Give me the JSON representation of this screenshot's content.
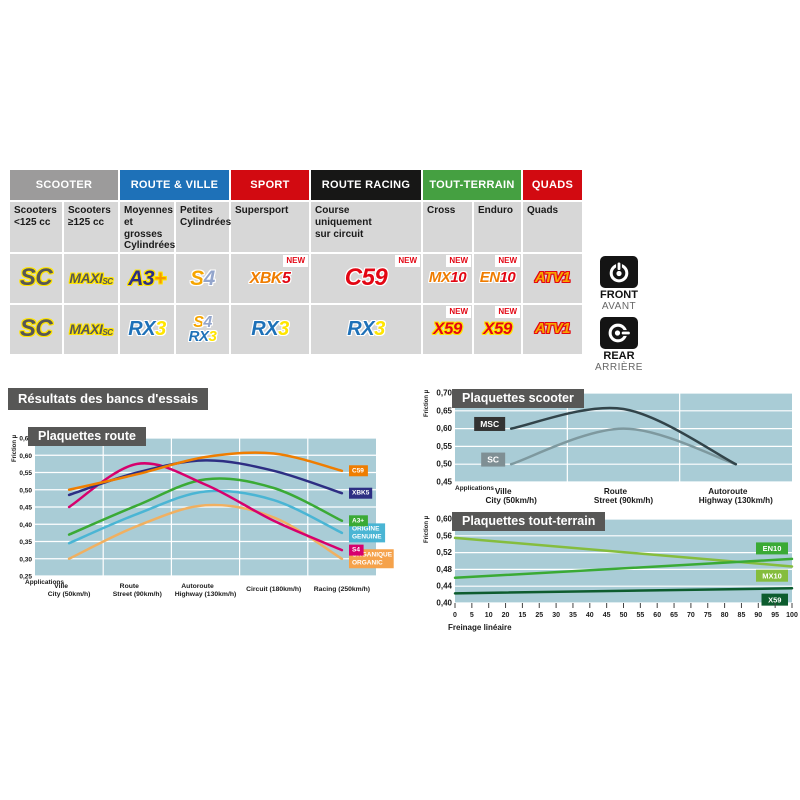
{
  "section_title": "Résultats des bancs d'essais",
  "table": {
    "categories": [
      {
        "label": "SCOOTER",
        "color": "#9c9b9b",
        "span": 2
      },
      {
        "label": "ROUTE & VILLE",
        "color": "#1e71b8",
        "span": 2
      },
      {
        "label": "SPORT",
        "color": "#d20a11",
        "span": 1
      },
      {
        "label": "ROUTE RACING",
        "color": "#171716",
        "span": 1
      },
      {
        "label": "TOUT-TERRAIN",
        "color": "#45a041",
        "span": 2
      },
      {
        "label": "QUADS",
        "color": "#d20a11",
        "span": 1
      }
    ],
    "subheaders": [
      "Scooters\n<125 cc",
      "Scooters\n≥125 cc",
      "Moyennes\net grosses\nCylindrées",
      "Petites\nCylindrées",
      "Supersport",
      "Course\nuniquement\nsur circuit",
      "Cross",
      "Enduro",
      "Quads"
    ],
    "new_label": "NEW",
    "rows": [
      {
        "side": "front",
        "cells": [
          [
            "SC"
          ],
          [
            "MAXI-SC"
          ],
          [
            "A3+"
          ],
          [
            "S4"
          ],
          [
            "XBK5"
          ],
          [
            "C59"
          ],
          [
            "MX10"
          ],
          [
            "EN10"
          ],
          [
            "ATV1"
          ]
        ],
        "new_flags": [
          false,
          false,
          false,
          false,
          true,
          true,
          true,
          true,
          false
        ]
      },
      {
        "side": "rear",
        "cells": [
          [
            "SC"
          ],
          [
            "MAXI-SC"
          ],
          [
            "RX3"
          ],
          [
            "S4",
            "RX3"
          ],
          [
            "RX3"
          ],
          [
            "RX3"
          ],
          [
            "X59"
          ],
          [
            "X59"
          ],
          [
            "ATV1"
          ]
        ],
        "new_flags": [
          false,
          false,
          false,
          false,
          false,
          false,
          true,
          true,
          false
        ]
      }
    ]
  },
  "badge_styles": {
    "SC": {
      "outline": "#ffe500",
      "size": 24,
      "segments": [
        {
          "t": "SC",
          "c": "#575756"
        }
      ]
    },
    "MAXI-SC": {
      "outline": "#ffe500",
      "size": 14,
      "segments": [
        {
          "t": "MAXI",
          "c": "#575756"
        },
        {
          "t": "SC",
          "c": "#575756",
          "small": true
        }
      ]
    },
    "A3+": {
      "outline": "#ffe500",
      "size": 21,
      "segments": [
        {
          "t": "A3",
          "c": "#2d2e83"
        },
        {
          "t": "+",
          "c": "#f59b00"
        }
      ]
    },
    "S4": {
      "outline": "#ffffff",
      "size": 21,
      "segments": [
        {
          "t": "S",
          "c": "#f6a500"
        },
        {
          "t": "4",
          "c": "#93a5cc"
        }
      ]
    },
    "XBK5": {
      "outline": "#ffffff",
      "size": 16,
      "segments": [
        {
          "t": "XBK",
          "c": "#f07d00"
        },
        {
          "t": "5",
          "c": "#e30613"
        }
      ]
    },
    "C59": {
      "outline": "#ffffff",
      "size": 24,
      "segments": [
        {
          "t": "C59",
          "c": "#e30613"
        }
      ]
    },
    "MX10": {
      "outline": "#ffffff",
      "size": 15,
      "segments": [
        {
          "t": "MX",
          "c": "#ef7c00"
        },
        {
          "t": "10",
          "c": "#e30613"
        }
      ]
    },
    "EN10": {
      "outline": "#ffffff",
      "size": 15,
      "segments": [
        {
          "t": "EN",
          "c": "#ef7c00"
        },
        {
          "t": "10",
          "c": "#e30613"
        }
      ]
    },
    "ATV1": {
      "outline": "#e30613",
      "size": 15,
      "segments": [
        {
          "t": "ATV1",
          "c": "#f7a600"
        }
      ]
    },
    "RX3": {
      "outline": "#ffffff",
      "size": 20,
      "segments": [
        {
          "t": "RX",
          "c": "#1e71b8"
        },
        {
          "t": "3",
          "c": "#ffe500"
        }
      ]
    },
    "X59": {
      "outline": "#ffe500",
      "size": 17,
      "segments": [
        {
          "t": "X59",
          "c": "#e30613"
        }
      ]
    }
  },
  "axle_legend": {
    "front_label": "FRONT",
    "front_sub": "AVANT",
    "rear_label": "REAR",
    "rear_sub": "ARRIÈRE"
  },
  "chart_data": [
    {
      "id": "route",
      "type": "line",
      "title": "Plaquettes route",
      "ylabel": "Friction µ",
      "xlabel_heading": "Applications",
      "bg": "#a9ccd6",
      "ylim": [
        0.25,
        0.65
      ],
      "ytick_step": 0.05,
      "grid": true,
      "legend_position": "right",
      "categories": [
        {
          "line1": "Ville",
          "line2": "City",
          "speed": "(50km/h)"
        },
        {
          "line1": "Route",
          "line2": "Street",
          "speed": "(90km/h)"
        },
        {
          "line1": "Autoroute",
          "line2": "Highway",
          "speed": "(130km/h)"
        },
        {
          "line1": "Circuit (180km/h)"
        },
        {
          "line1": "Racing (250km/h)"
        }
      ],
      "series": [
        {
          "name": "ORGANIQUE\nORGANIC",
          "color": "#f0b061",
          "label_bg": "#f5a24b",
          "values": [
            0.3,
            0.395,
            0.455,
            0.42,
            0.3
          ]
        },
        {
          "name": "ORIGINE\nGENUINE",
          "color": "#4ab5d4",
          "label_bg": "#4ab5d4",
          "values": [
            0.345,
            0.43,
            0.495,
            0.47,
            0.375
          ]
        },
        {
          "name": "A3+",
          "color": "#3aaa35",
          "values": [
            0.37,
            0.455,
            0.53,
            0.505,
            0.41
          ]
        },
        {
          "name": "S4",
          "color": "#d6006d",
          "values": [
            0.45,
            0.575,
            0.515,
            0.41,
            0.325
          ]
        },
        {
          "name": "XBK5",
          "color": "#2d2e83",
          "values": [
            0.485,
            0.55,
            0.585,
            0.555,
            0.49
          ]
        },
        {
          "name": "C59",
          "color": "#ef7d00",
          "values": [
            0.5,
            0.545,
            0.595,
            0.605,
            0.555
          ]
        }
      ]
    },
    {
      "id": "scooter",
      "type": "line",
      "title": "Plaquettes scooter",
      "ylabel": "Friction µ",
      "xlabel_heading": "Applications",
      "bg": "#a9ccd6",
      "ylim": [
        0.45,
        0.7
      ],
      "ytick_step": 0.05,
      "grid": true,
      "legend_position": "start",
      "categories": [
        {
          "line1": "Ville",
          "line2": "City",
          "speed": "(50km/h)"
        },
        {
          "line1": "Route",
          "line2": "Street",
          "speed": "(90km/h)"
        },
        {
          "line1": "Autoroute",
          "line2": "Highway",
          "speed": "(130km/h)"
        }
      ],
      "series": [
        {
          "name": "SC",
          "color": "#7e999f",
          "label_bg": "#7f8f94",
          "values": [
            0.5,
            0.6,
            0.5
          ]
        },
        {
          "name": "MSC",
          "color": "#32444a",
          "label_bg": "#333333",
          "values": [
            0.6,
            0.655,
            0.5
          ]
        }
      ]
    },
    {
      "id": "terrain",
      "type": "line",
      "title": "Plaquettes tout-terrain",
      "ylabel": "Friction µ",
      "xlabel": "Freinage linéaire",
      "bg": "#a9ccd6",
      "ylim": [
        0.4,
        0.6
      ],
      "ytick_step": 0.04,
      "grid": true,
      "legend_position": "inside-right",
      "xticks": [
        "0",
        "5",
        "10",
        "20",
        "15",
        "25",
        "30",
        "35",
        "40",
        "45",
        "50",
        "55",
        "60",
        "65",
        "70",
        "75",
        "80",
        "85",
        "90",
        "95",
        "100"
      ],
      "xrange": [
        0,
        100
      ],
      "series": [
        {
          "name": "MX10",
          "color": "#85bd3d",
          "label_bg": "#85bd3d",
          "values": [
            0.555,
            0.487
          ],
          "x": [
            0,
            100
          ],
          "label_y": 0.465
        },
        {
          "name": "EN10",
          "color": "#3aaa35",
          "label_bg": "#3aaa35",
          "values": [
            0.46,
            0.505
          ],
          "x": [
            0,
            100
          ],
          "label_y": 0.53
        },
        {
          "name": "X59",
          "color": "#0d5c2e",
          "label_bg": "#0d5c2e",
          "values": [
            0.423,
            0.435
          ],
          "x": [
            0,
            100
          ],
          "label_y": 0.408
        }
      ]
    }
  ]
}
